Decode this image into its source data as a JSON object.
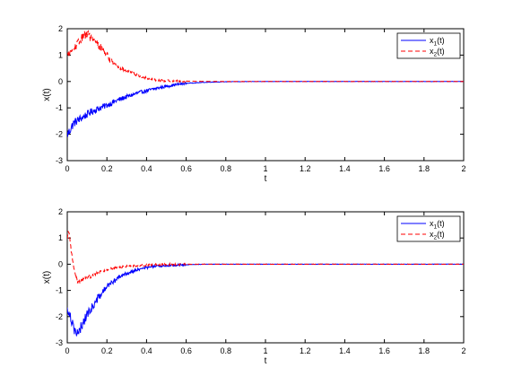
{
  "chart_data": [
    {
      "type": "line",
      "title": "",
      "xlabel": "t",
      "ylabel": "x(t)",
      "xlim": [
        0,
        2
      ],
      "ylim": [
        -3,
        2
      ],
      "xticks": [
        "0",
        "0.2",
        "0.4",
        "0.6",
        "0.8",
        "1",
        "1.2",
        "1.4",
        "1.6",
        "1.8",
        "2"
      ],
      "yticks": [
        "-3",
        "-2",
        "-1",
        "0",
        "1",
        "2"
      ],
      "grid": false,
      "legend_position": "top-right",
      "series": [
        {
          "name": "x",
          "subscript": "1",
          "suffix": "(t)",
          "color": "#0000ff",
          "dash": "solid",
          "x": [
            0,
            0.01,
            0.02,
            0.03,
            0.05,
            0.08,
            0.1,
            0.12,
            0.15,
            0.2,
            0.25,
            0.3,
            0.35,
            0.4,
            0.45,
            0.5,
            0.55,
            0.6,
            0.7,
            0.8,
            1.0,
            1.2,
            1.5,
            2.0
          ],
          "y": [
            -2.0,
            -1.9,
            -1.75,
            -1.6,
            -1.48,
            -1.35,
            -1.25,
            -1.15,
            -1.05,
            -0.9,
            -0.72,
            -0.58,
            -0.45,
            -0.35,
            -0.26,
            -0.18,
            -0.12,
            -0.07,
            -0.03,
            -0.01,
            0.0,
            0.0,
            0.0,
            0.0
          ]
        },
        {
          "name": "x",
          "subscript": "2",
          "suffix": "(t)",
          "color": "#ff0000",
          "dash": "dashed",
          "x": [
            0,
            0.01,
            0.02,
            0.04,
            0.06,
            0.08,
            0.09,
            0.1,
            0.11,
            0.12,
            0.14,
            0.16,
            0.18,
            0.2,
            0.22,
            0.25,
            0.28,
            0.3,
            0.35,
            0.4,
            0.45,
            0.5,
            0.6,
            0.8,
            1.0,
            1.5,
            2.0
          ],
          "y": [
            1.0,
            1.05,
            1.15,
            1.3,
            1.5,
            1.7,
            1.8,
            1.85,
            1.75,
            1.65,
            1.5,
            1.35,
            1.2,
            1.0,
            0.8,
            0.6,
            0.48,
            0.4,
            0.25,
            0.12,
            0.06,
            0.03,
            0.01,
            0.0,
            0.0,
            0.0,
            0.0
          ]
        }
      ]
    },
    {
      "type": "line",
      "title": "",
      "xlabel": "t",
      "ylabel": "x(t)",
      "xlim": [
        0,
        2
      ],
      "ylim": [
        -3,
        2
      ],
      "xticks": [
        "0",
        "0.2",
        "0.4",
        "0.6",
        "0.8",
        "1",
        "1.2",
        "1.4",
        "1.6",
        "1.8",
        "2"
      ],
      "yticks": [
        "-3",
        "-2",
        "-1",
        "0",
        "1",
        "2"
      ],
      "grid": false,
      "legend_position": "top-right",
      "series": [
        {
          "name": "x",
          "subscript": "1",
          "suffix": "(t)",
          "color": "#0000ff",
          "dash": "solid",
          "x": [
            0,
            0.01,
            0.02,
            0.03,
            0.04,
            0.05,
            0.06,
            0.07,
            0.08,
            0.09,
            0.1,
            0.11,
            0.12,
            0.13,
            0.15,
            0.18,
            0.2,
            0.25,
            0.3,
            0.35,
            0.4,
            0.45,
            0.5,
            0.55,
            0.6,
            0.7,
            0.8,
            1.0,
            1.5,
            2.0
          ],
          "y": [
            -1.75,
            -1.8,
            -2.1,
            -2.3,
            -2.55,
            -2.7,
            -2.65,
            -2.4,
            -2.2,
            -2.05,
            -1.95,
            -1.8,
            -1.7,
            -1.6,
            -1.35,
            -1.05,
            -0.85,
            -0.55,
            -0.35,
            -0.22,
            -0.13,
            -0.08,
            -0.05,
            -0.03,
            -0.02,
            0.0,
            0.0,
            0.0,
            0.0,
            0.0
          ]
        },
        {
          "name": "x",
          "subscript": "2",
          "suffix": "(t)",
          "color": "#ff0000",
          "dash": "dashed",
          "x": [
            0,
            0.005,
            0.01,
            0.015,
            0.02,
            0.03,
            0.04,
            0.05,
            0.06,
            0.08,
            0.1,
            0.12,
            0.15,
            0.2,
            0.25,
            0.3,
            0.35,
            0.4,
            0.5,
            0.6,
            0.8,
            1.0,
            1.5,
            2.0
          ],
          "y": [
            0.9,
            1.2,
            1.1,
            0.85,
            0.5,
            0.0,
            -0.4,
            -0.65,
            -0.7,
            -0.6,
            -0.55,
            -0.45,
            -0.32,
            -0.2,
            -0.12,
            -0.08,
            -0.05,
            -0.03,
            -0.01,
            0.0,
            0.0,
            0.0,
            0.0,
            0.0
          ]
        }
      ]
    }
  ]
}
